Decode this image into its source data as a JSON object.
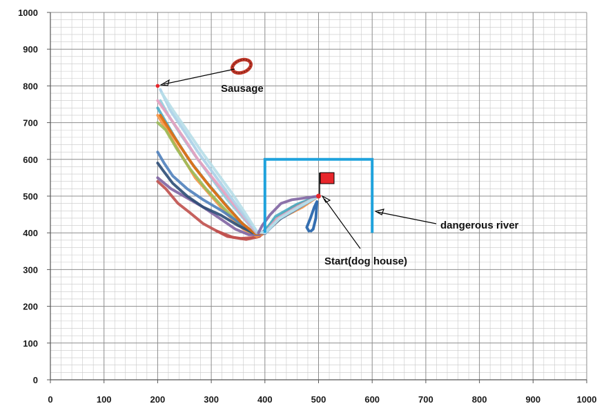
{
  "chart_data": {
    "type": "line",
    "xlim": [
      0,
      1000
    ],
    "ylim": [
      0,
      1000
    ],
    "x_ticks": [
      "0",
      "100",
      "200",
      "300",
      "400",
      "500",
      "600",
      "700",
      "800",
      "900",
      "1000"
    ],
    "y_ticks": [
      "0",
      "100",
      "200",
      "300",
      "400",
      "500",
      "600",
      "700",
      "800",
      "900",
      "1000"
    ],
    "grid": "on",
    "minor_grid": "on",
    "start": {
      "x": 500,
      "y": 500,
      "label": "Start(dog house)"
    },
    "sausage": {
      "x": 200,
      "y": 800,
      "label": "Sausage"
    },
    "river": {
      "points": [
        [
          400,
          400
        ],
        [
          400,
          600
        ],
        [
          600,
          600
        ],
        [
          600,
          400
        ]
      ],
      "label": "dangerous river",
      "color": "#1fa2dc"
    },
    "flag_color": "#e8262b",
    "series": [
      {
        "color": "#c0504d",
        "points": [
          [
            500,
            500
          ],
          [
            470,
            480
          ],
          [
            440,
            455
          ],
          [
            410,
            420
          ],
          [
            390,
            390
          ],
          [
            365,
            382
          ],
          [
            340,
            388
          ],
          [
            310,
            405
          ],
          [
            285,
            425
          ],
          [
            260,
            455
          ],
          [
            238,
            480
          ],
          [
            215,
            520
          ],
          [
            200,
            540
          ]
        ]
      },
      {
        "color": "#c0504d",
        "points": [
          [
            500,
            500
          ],
          [
            450,
            470
          ],
          [
            420,
            430
          ],
          [
            400,
            400
          ],
          [
            385,
            388
          ],
          [
            355,
            385
          ],
          [
            330,
            390
          ],
          [
            310,
            405
          ]
        ]
      },
      {
        "color": "#f79646",
        "points": [
          [
            500,
            500
          ],
          [
            470,
            470
          ],
          [
            430,
            440
          ],
          [
            400,
            400
          ],
          [
            385,
            390
          ],
          [
            360,
            410
          ],
          [
            330,
            450
          ],
          [
            300,
            500
          ],
          [
            270,
            550
          ],
          [
            245,
            610
          ],
          [
            225,
            660
          ],
          [
            200,
            720
          ]
        ]
      },
      {
        "color": "#9bbb59",
        "points": [
          [
            500,
            500
          ],
          [
            460,
            475
          ],
          [
            420,
            440
          ],
          [
            395,
            400
          ],
          [
            380,
            395
          ],
          [
            355,
            420
          ],
          [
            325,
            465
          ],
          [
            290,
            520
          ],
          [
            260,
            575
          ],
          [
            235,
            630
          ],
          [
            215,
            680
          ],
          [
            200,
            700
          ]
        ]
      },
      {
        "color": "#8064a2",
        "points": [
          [
            500,
            500
          ],
          [
            470,
            480
          ],
          [
            440,
            455
          ],
          [
            410,
            420
          ],
          [
            390,
            395
          ],
          [
            370,
            395
          ],
          [
            345,
            410
          ],
          [
            315,
            440
          ],
          [
            285,
            470
          ],
          [
            255,
            495
          ],
          [
            225,
            520
          ],
          [
            200,
            550
          ]
        ]
      },
      {
        "color": "#4bacc6",
        "points": [
          [
            500,
            500
          ],
          [
            460,
            478
          ],
          [
            420,
            445
          ],
          [
            398,
            400
          ],
          [
            380,
            398
          ],
          [
            355,
            430
          ],
          [
            325,
            480
          ],
          [
            290,
            540
          ],
          [
            258,
            600
          ],
          [
            232,
            660
          ],
          [
            212,
            710
          ],
          [
            200,
            740
          ]
        ]
      },
      {
        "color": "#4f81bd",
        "points": [
          [
            500,
            500
          ],
          [
            465,
            470
          ],
          [
            425,
            435
          ],
          [
            400,
            398
          ],
          [
            380,
            400
          ],
          [
            355,
            425
          ],
          [
            320,
            460
          ],
          [
            285,
            490
          ],
          [
            255,
            520
          ],
          [
            228,
            555
          ],
          [
            212,
            590
          ],
          [
            200,
            620
          ]
        ]
      },
      {
        "color": "#2c4d75",
        "points": [
          [
            500,
            500
          ],
          [
            470,
            475
          ],
          [
            430,
            440
          ],
          [
            400,
            400
          ],
          [
            378,
            400
          ],
          [
            350,
            420
          ],
          [
            318,
            448
          ],
          [
            285,
            470
          ],
          [
            255,
            500
          ],
          [
            228,
            535
          ],
          [
            210,
            570
          ],
          [
            200,
            590
          ]
        ]
      },
      {
        "color": "#e46c0a",
        "points": [
          [
            500,
            500
          ],
          [
            465,
            475
          ],
          [
            425,
            440
          ],
          [
            400,
            400
          ],
          [
            382,
            398
          ],
          [
            358,
            425
          ],
          [
            330,
            470
          ],
          [
            298,
            525
          ],
          [
            268,
            580
          ],
          [
            240,
            640
          ],
          [
            218,
            690
          ],
          [
            205,
            720
          ]
        ]
      },
      {
        "color": "#93cddd",
        "points": [
          [
            500,
            500
          ],
          [
            470,
            478
          ],
          [
            430,
            445
          ],
          [
            402,
            402
          ],
          [
            384,
            400
          ],
          [
            360,
            440
          ],
          [
            330,
            490
          ],
          [
            300,
            550
          ],
          [
            270,
            610
          ],
          [
            242,
            670
          ],
          [
            220,
            720
          ],
          [
            205,
            760
          ]
        ]
      },
      {
        "color": "#e6a0c0",
        "points": [
          [
            500,
            500
          ],
          [
            462,
            472
          ],
          [
            422,
            438
          ],
          [
            400,
            400
          ],
          [
            384,
            402
          ],
          [
            362,
            440
          ],
          [
            335,
            490
          ],
          [
            305,
            545
          ],
          [
            275,
            600
          ],
          [
            248,
            660
          ],
          [
            222,
            715
          ],
          [
            200,
            760
          ]
        ]
      },
      {
        "color": "#aad0e8",
        "points": [
          [
            500,
            500
          ],
          [
            468,
            475
          ],
          [
            428,
            440
          ],
          [
            402,
            402
          ],
          [
            386,
            402
          ],
          [
            362,
            445
          ],
          [
            335,
            500
          ],
          [
            305,
            560
          ],
          [
            275,
            620
          ],
          [
            248,
            680
          ],
          [
            225,
            730
          ],
          [
            205,
            790
          ]
        ]
      },
      {
        "color": "#b7dee8",
        "points": [
          [
            500,
            500
          ],
          [
            466,
            472
          ],
          [
            426,
            438
          ],
          [
            400,
            400
          ],
          [
            385,
            404
          ],
          [
            365,
            450
          ],
          [
            340,
            505
          ],
          [
            310,
            565
          ],
          [
            280,
            625
          ],
          [
            252,
            685
          ],
          [
            228,
            735
          ],
          [
            208,
            780
          ]
        ]
      },
      {
        "color": "#8064a2",
        "points": [
          [
            500,
            500
          ],
          [
            475,
            495
          ],
          [
            450,
            490
          ],
          [
            430,
            480
          ],
          [
            410,
            450
          ],
          [
            395,
            420
          ],
          [
            388,
            400
          ]
        ]
      },
      {
        "color": "#1f5fa8",
        "points": [
          [
            482,
            405
          ],
          [
            478,
            415
          ],
          [
            485,
            440
          ],
          [
            492,
            470
          ],
          [
            497,
            485
          ],
          [
            495,
            440
          ],
          [
            490,
            410
          ],
          [
            486,
            405
          ]
        ]
      }
    ]
  }
}
